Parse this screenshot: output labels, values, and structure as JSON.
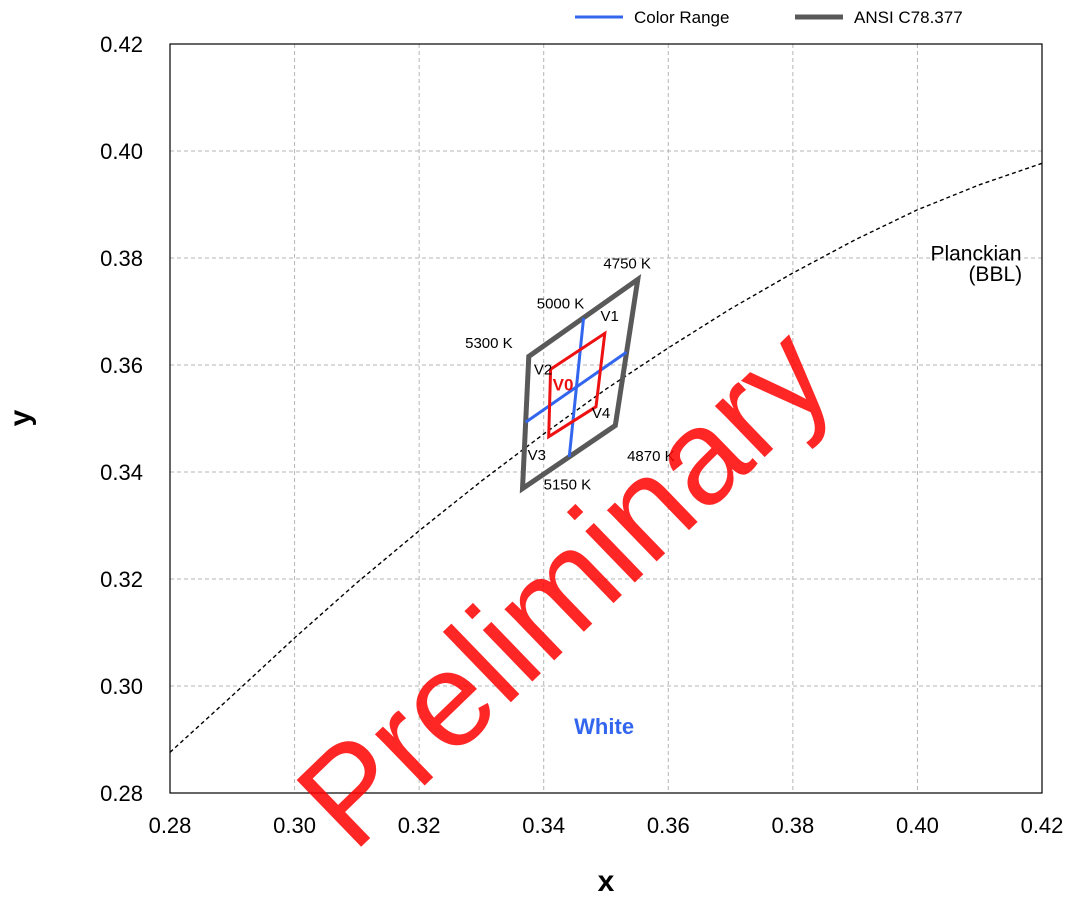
{
  "chart_data": {
    "type": "line",
    "xlabel": "x",
    "ylabel": "y",
    "xlim": [
      0.28,
      0.42
    ],
    "ylim": [
      0.28,
      0.42
    ],
    "x_ticks": [
      "0.28",
      "0.30",
      "0.32",
      "0.34",
      "0.36",
      "0.38",
      "0.40",
      "0.42"
    ],
    "y_ticks": [
      "0.28",
      "0.30",
      "0.32",
      "0.34",
      "0.36",
      "0.38",
      "0.40",
      "0.42"
    ],
    "grid": true,
    "legend_position": "top-right",
    "legend": [
      {
        "label": "Color Range",
        "color": "#3366ee"
      },
      {
        "label": "ANSI C78.377",
        "color": "#595959"
      }
    ],
    "series": [
      {
        "name": "ANSI C78.377",
        "color": "#595959",
        "closed": true,
        "points": [
          [
            0.3376,
            0.3616
          ],
          [
            0.3551,
            0.376
          ],
          [
            0.3515,
            0.3487
          ],
          [
            0.3366,
            0.3369
          ]
        ]
      },
      {
        "name": "Color Range",
        "color": "#3366ee",
        "lines": [
          [
            [
              0.3464,
              0.3688
            ],
            [
              0.3441,
              0.3428
            ]
          ],
          [
            [
              0.3371,
              0.3493
            ],
            [
              0.3533,
              0.3624
            ]
          ]
        ]
      },
      {
        "color": "#ee1111",
        "closed": true,
        "points": [
          [
            0.3411,
            0.3592
          ],
          [
            0.3498,
            0.3659
          ],
          [
            0.3484,
            0.3522
          ],
          [
            0.3408,
            0.3466
          ]
        ]
      },
      {
        "color": "#000000",
        "style": "dashed",
        "points": [
          [
            0.28,
            0.2876
          ],
          [
            0.29,
            0.2982
          ],
          [
            0.3,
            0.309
          ],
          [
            0.31,
            0.3193
          ],
          [
            0.32,
            0.329
          ],
          [
            0.33,
            0.3383
          ],
          [
            0.34,
            0.3471
          ],
          [
            0.35,
            0.3555
          ],
          [
            0.36,
            0.3632
          ],
          [
            0.37,
            0.3705
          ],
          [
            0.38,
            0.3772
          ],
          [
            0.39,
            0.3834
          ],
          [
            0.4,
            0.389
          ],
          [
            0.41,
            0.3937
          ],
          [
            0.42,
            0.3977
          ]
        ]
      }
    ],
    "annotations": [
      {
        "text": "4750 K",
        "x": 0.3534,
        "y": 0.378,
        "color": "#000000",
        "anchor": "middle",
        "style": "ann"
      },
      {
        "text": "5000 K",
        "x": 0.3427,
        "y": 0.3706,
        "color": "#000000",
        "anchor": "middle",
        "style": "ann"
      },
      {
        "text": "5300 K",
        "x": 0.3312,
        "y": 0.3632,
        "color": "#000000",
        "anchor": "middle",
        "style": "ann"
      },
      {
        "text": "4870 K",
        "x": 0.3572,
        "y": 0.3421,
        "color": "#000000",
        "anchor": "middle",
        "style": "ann"
      },
      {
        "text": "5150 K",
        "x": 0.3438,
        "y": 0.3367,
        "color": "#000000",
        "anchor": "middle",
        "style": "ann"
      },
      {
        "text": "V1",
        "x": 0.3506,
        "y": 0.3682,
        "color": "#000000",
        "anchor": "middle",
        "style": "ann"
      },
      {
        "text": "V2",
        "x": 0.3399,
        "y": 0.3582,
        "color": "#000000",
        "anchor": "middle",
        "style": "ann"
      },
      {
        "text": "V0",
        "x": 0.3431,
        "y": 0.3552,
        "color": "#ee1111",
        "anchor": "middle",
        "style": "v0"
      },
      {
        "text": "V4",
        "x": 0.3492,
        "y": 0.3501,
        "color": "#000000",
        "anchor": "middle",
        "style": "ann"
      },
      {
        "text": "V3",
        "x": 0.3389,
        "y": 0.3422,
        "color": "#000000",
        "anchor": "middle",
        "style": "ann"
      },
      {
        "text": "Planckian",
        "x": 0.4094,
        "y": 0.3795,
        "color": "#000000",
        "anchor": "middle",
        "style": "label"
      },
      {
        "text": "(BBL)",
        "x": 0.4125,
        "y": 0.3757,
        "color": "#000000",
        "anchor": "middle",
        "style": "label"
      },
      {
        "text": "White",
        "x": 0.3497,
        "y": 0.291,
        "color": "#3366ee",
        "anchor": "middle",
        "style": "white"
      }
    ],
    "watermark": {
      "text": "Preliminary",
      "color": "#ff0000",
      "opacity": 0.85
    }
  }
}
